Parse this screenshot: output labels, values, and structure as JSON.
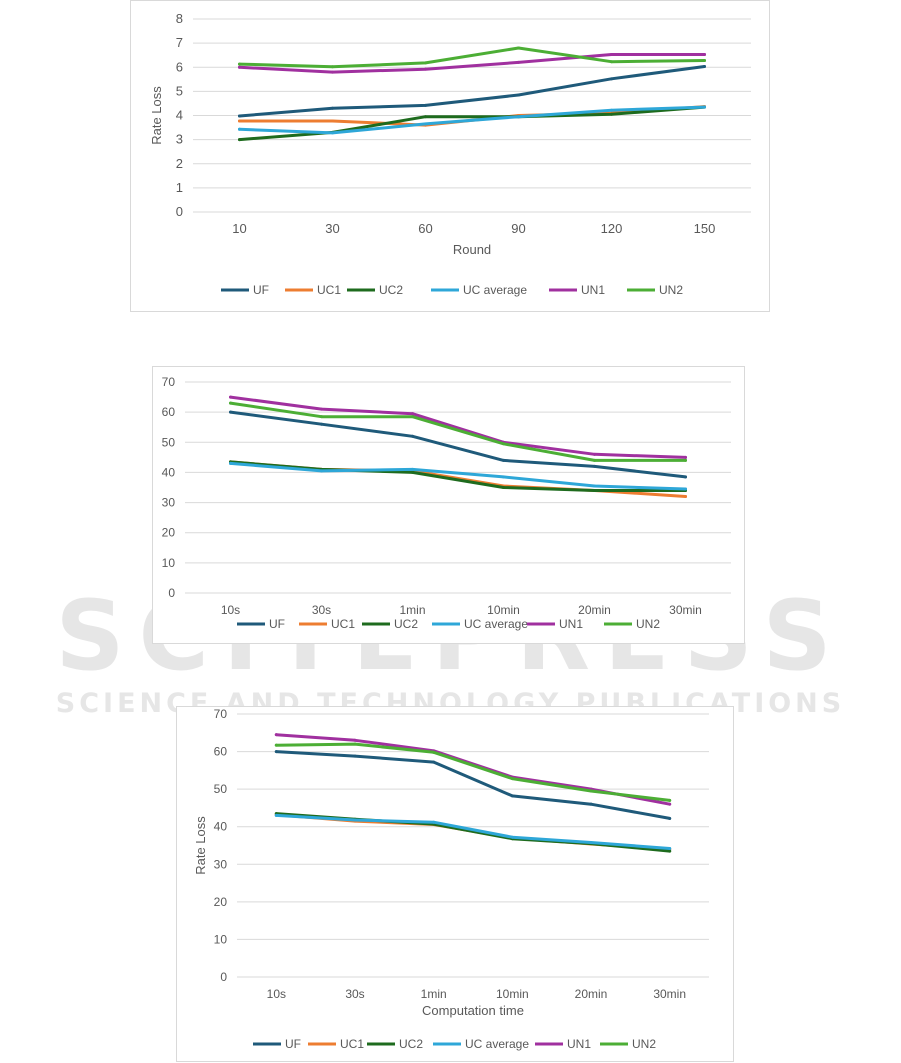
{
  "series_colors": {
    "UF": "#1f5a7a",
    "UC1": "#ed7d31",
    "UC2": "#1e6b1e",
    "UC average": "#2ea7d8",
    "UN1": "#a0309f",
    "UN2": "#4cae35"
  },
  "watermark": {
    "line1": "SCITEPRESS",
    "line2": "SCIENCE AND TECHNOLOGY PUBLICATIONS"
  },
  "chart_data": [
    {
      "type": "line",
      "title": "",
      "xlabel": "Round",
      "ylabel": "Rate Loss",
      "categories": [
        "10",
        "30",
        "60",
        "90",
        "120",
        "150"
      ],
      "ylim": [
        0,
        8
      ],
      "yticks": [
        0,
        1,
        2,
        3,
        4,
        5,
        6,
        7,
        8
      ],
      "grid": true,
      "legend_position": "bottom",
      "series": [
        {
          "name": "UF",
          "values": [
            3.98,
            4.3,
            4.42,
            4.85,
            5.52,
            6.03
          ]
        },
        {
          "name": "UC1",
          "values": [
            3.77,
            3.77,
            3.6,
            4.0,
            4.1,
            4.37
          ]
        },
        {
          "name": "UC2",
          "values": [
            3.0,
            3.3,
            3.95,
            3.95,
            4.05,
            4.35
          ]
        },
        {
          "name": "UC average",
          "values": [
            3.43,
            3.28,
            3.65,
            3.95,
            4.22,
            4.35
          ]
        },
        {
          "name": "UN1",
          "values": [
            6.0,
            5.8,
            5.92,
            6.2,
            6.53,
            6.53
          ]
        },
        {
          "name": "UN2",
          "values": [
            6.13,
            6.02,
            6.18,
            6.8,
            6.23,
            6.28
          ]
        }
      ]
    },
    {
      "type": "line",
      "title": "",
      "xlabel": "",
      "ylabel": "",
      "categories": [
        "10s",
        "30s",
        "1min",
        "10min",
        "20min",
        "30min"
      ],
      "ylim": [
        0,
        70
      ],
      "yticks": [
        0,
        10,
        20,
        30,
        40,
        50,
        60,
        70
      ],
      "grid": true,
      "legend_position": "bottom",
      "series": [
        {
          "name": "UF",
          "values": [
            60,
            56,
            52,
            44,
            42,
            38.5
          ]
        },
        {
          "name": "UC1",
          "values": [
            43.5,
            41,
            40.5,
            35.5,
            34,
            32
          ]
        },
        {
          "name": "UC2",
          "values": [
            43.5,
            41,
            40,
            35,
            34,
            34
          ]
        },
        {
          "name": "UC average",
          "values": [
            43,
            40.5,
            41,
            38.5,
            35.5,
            34.5
          ]
        },
        {
          "name": "UN1",
          "values": [
            65,
            61,
            59.5,
            50,
            46,
            45
          ]
        },
        {
          "name": "UN2",
          "values": [
            63,
            58.5,
            58.5,
            49.5,
            44,
            44
          ]
        }
      ]
    },
    {
      "type": "line",
      "title": "",
      "xlabel": "Computation time",
      "ylabel": "Rate Loss",
      "categories": [
        "10s",
        "30s",
        "1min",
        "10min",
        "20min",
        "30min"
      ],
      "ylim": [
        0,
        70
      ],
      "yticks": [
        0,
        10,
        20,
        30,
        40,
        50,
        60,
        70
      ],
      "grid": true,
      "legend_position": "bottom",
      "series": [
        {
          "name": "UF",
          "values": [
            60,
            58.8,
            57.2,
            48.2,
            46,
            42.2
          ]
        },
        {
          "name": "UC1",
          "values": [
            43.2,
            41.5,
            40.6,
            37,
            35.4,
            34
          ]
        },
        {
          "name": "UC2",
          "values": [
            43.5,
            42,
            40.7,
            36.8,
            35.5,
            33.5
          ]
        },
        {
          "name": "UC average",
          "values": [
            43,
            41.8,
            41.2,
            37.2,
            35.8,
            34.2
          ]
        },
        {
          "name": "UN1",
          "values": [
            64.5,
            63,
            60.2,
            53.2,
            50,
            46
          ]
        },
        {
          "name": "UN2",
          "values": [
            61.7,
            62,
            59.8,
            52.8,
            49.5,
            47
          ]
        }
      ]
    }
  ]
}
